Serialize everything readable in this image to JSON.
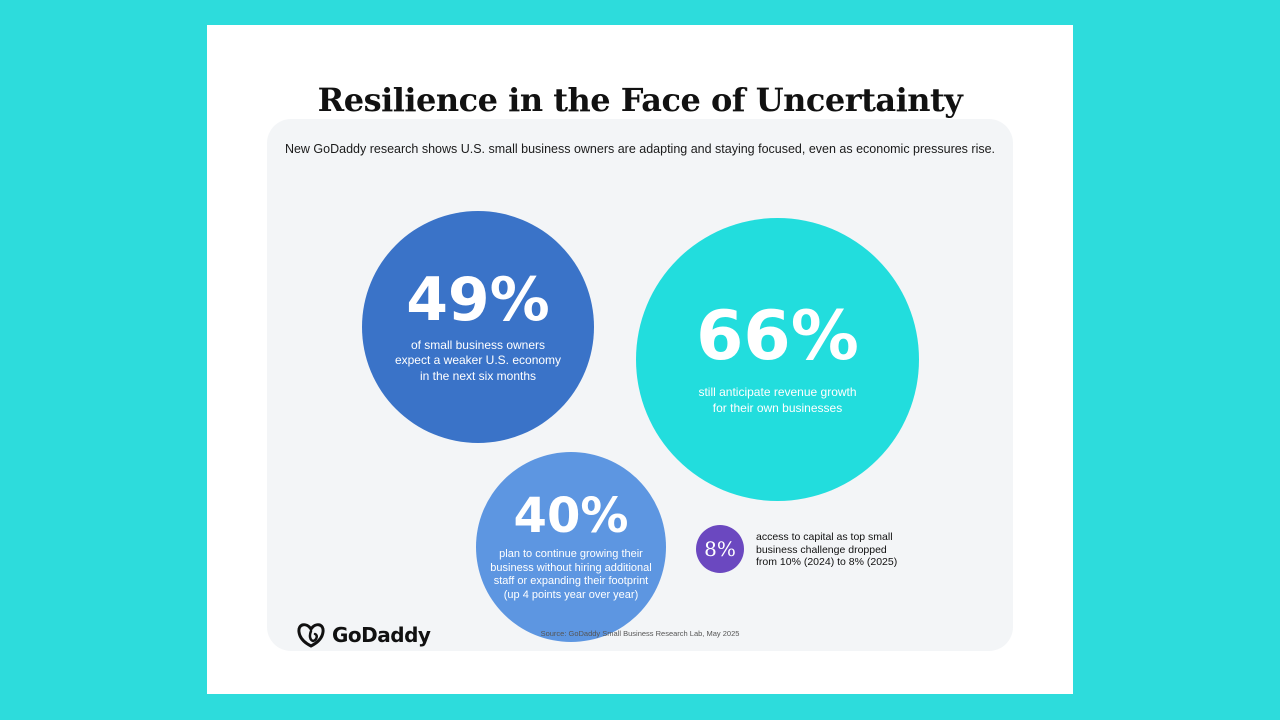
{
  "title": "Resilience in the Face of Uncertainty",
  "intro": "New GoDaddy research shows U.S. small business owners are adapting and staying focused, even as economic pressures rise.",
  "stats": [
    {
      "value": "49%",
      "description": "of small business owners expect a weaker U.S. economy in the next six months",
      "color": "#3a73c8"
    },
    {
      "value": "66%",
      "description": "still anticipate revenue growth for their own businesses",
      "color": "#22dddd"
    },
    {
      "value": "40%",
      "description": "plan to continue growing their business without hiring additional staff or expanding their footprint (up 4 points year over year)",
      "color": "#5d96e1"
    },
    {
      "value": "8%",
      "description": "access to capital as top small business challenge dropped from 10% (2024) to 8% (2025)",
      "color": "#6b48c0"
    }
  ],
  "logo": {
    "text": "GoDaddy",
    "icon": "godaddy-logo-icon"
  },
  "source": "Source: GoDaddy Small Business Research Lab, May 2025",
  "colors": {
    "background": "#2ddcdc",
    "card": "#ffffff",
    "panel": "#f3f5f7"
  }
}
